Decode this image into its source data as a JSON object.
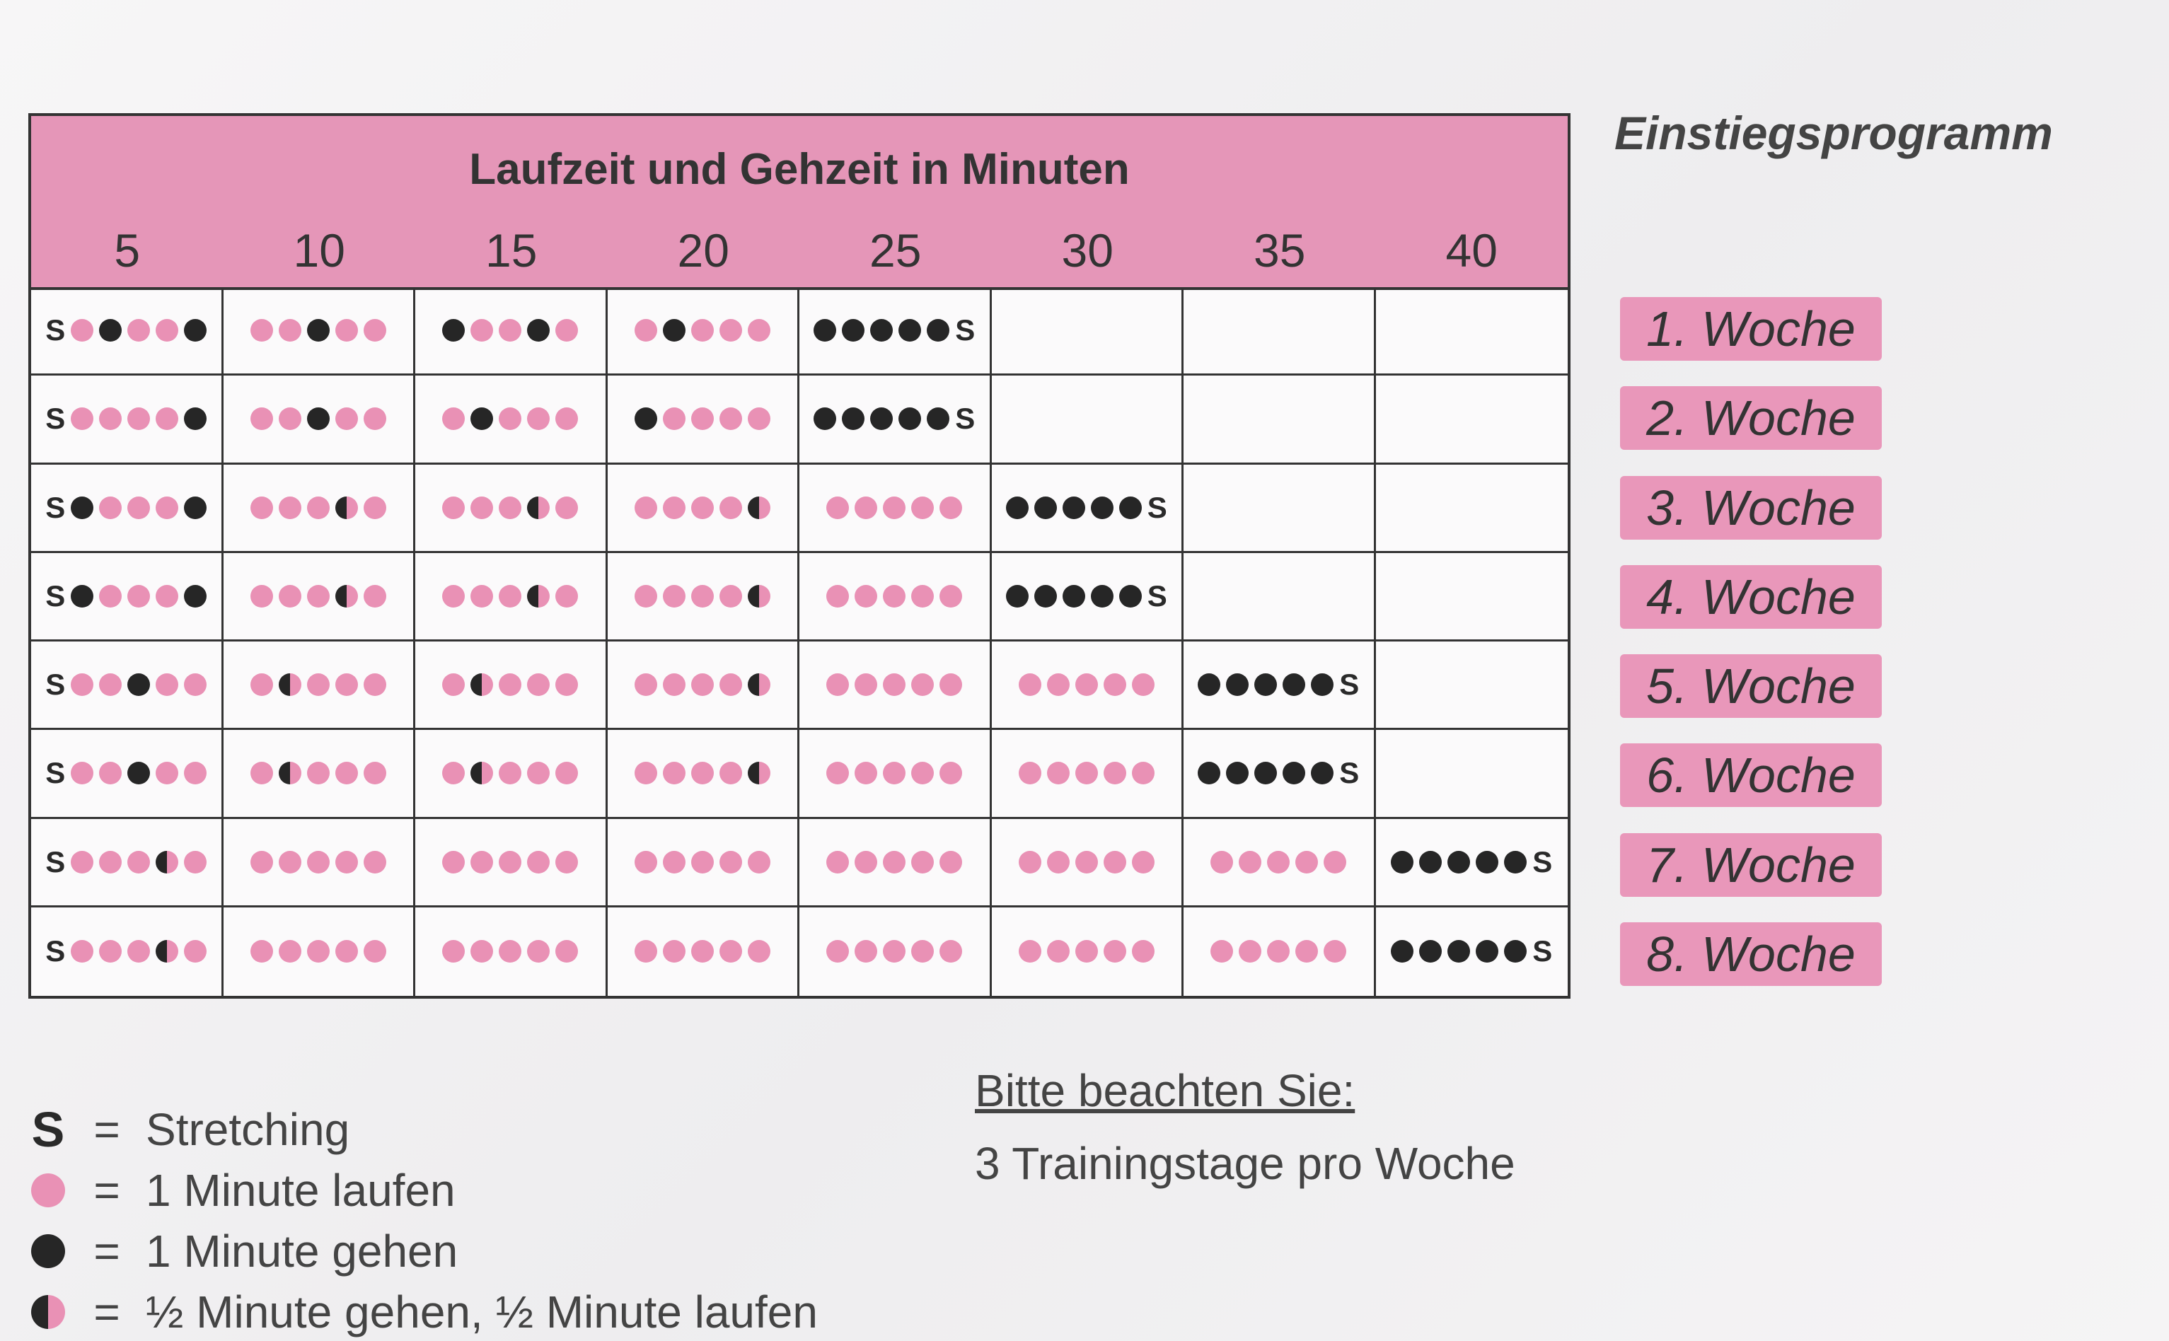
{
  "table": {
    "title": "Laufzeit und Gehzeit in Minuten",
    "minutes": [
      "5",
      "10",
      "15",
      "20",
      "25",
      "30",
      "35",
      "40"
    ],
    "rows": [
      [
        "SPBPPB",
        "PPBPP",
        "BPPBP",
        "PBPPP",
        "BBBBBS",
        "",
        "",
        ""
      ],
      [
        "SPPPPB",
        "PPBPP",
        "PBPPP",
        "BPPPP",
        "BBBBBS",
        "",
        "",
        ""
      ],
      [
        "SBPPPB",
        "PPPHP",
        "PPPHP",
        "PPPPH",
        "PPPPP",
        "BBBBBS",
        "",
        ""
      ],
      [
        "SBPPPB",
        "PPPHP",
        "PPPHP",
        "PPPPH",
        "PPPPP",
        "BBBBBS",
        "",
        ""
      ],
      [
        "SPPBPP",
        "PHPPP",
        "PHPPP",
        "PPPPH",
        "PPPPP",
        "PPPPP",
        "BBBBBS",
        ""
      ],
      [
        "SPPBPP",
        "PHPPP",
        "PHPPP",
        "PPPPH",
        "PPPPP",
        "PPPPP",
        "BBBBBS",
        ""
      ],
      [
        "SPPPHP",
        "PPPPP",
        "PPPPP",
        "PPPPP",
        "PPPPP",
        "PPPPP",
        "PPPPP",
        "BBBBBS"
      ],
      [
        "SPPPHP",
        "PPPPP",
        "PPPPP",
        "PPPPP",
        "PPPPP",
        "PPPPP",
        "PPPPP",
        "BBBBBS"
      ]
    ]
  },
  "sidebar": {
    "title": "Einstiegsprogramm",
    "weeks": [
      "1. Woche",
      "2. Woche",
      "3. Woche",
      "4. Woche",
      "5. Woche",
      "6. Woche",
      "7. Woche",
      "8. Woche"
    ]
  },
  "legend": {
    "stretch_symbol": "S",
    "equals": "=",
    "stretch": "Stretching",
    "run": "1 Minute laufen",
    "walk": "1 Minute gehen",
    "half": "½ Minute gehen, ½ Minute laufen"
  },
  "note": {
    "heading": "Bitte beachten Sie:",
    "text": "3 Trainingstage pro Woche"
  },
  "colors": {
    "pink": "#e991b5",
    "dark": "#262626",
    "header": "#e596b8"
  }
}
